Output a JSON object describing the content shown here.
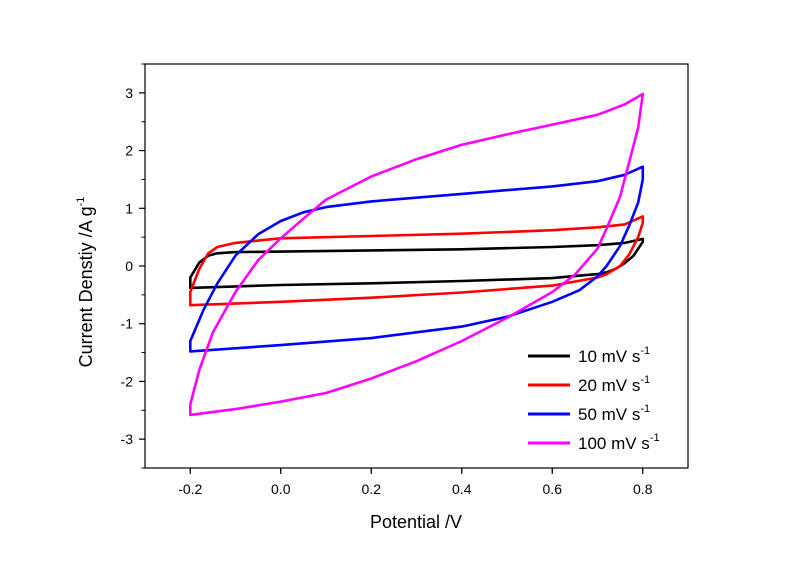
{
  "chart_data": {
    "type": "line",
    "title": "",
    "xlabel": "Potential /V",
    "ylabel": {
      "text": "Current Denstiy /A g",
      "superscript": "-1"
    },
    "xlim": [
      -0.3,
      0.9
    ],
    "ylim": [
      -3.5,
      3.5
    ],
    "xticks": [
      -0.2,
      0.0,
      0.2,
      0.4,
      0.6,
      0.8
    ],
    "xtick_labels": [
      "-0.2",
      "0.0",
      "0.2",
      "0.4",
      "0.6",
      "0.8"
    ],
    "yticks": [
      -3,
      -2,
      -1,
      0,
      1,
      2,
      3
    ],
    "ytick_labels": [
      "-3",
      "-2",
      "-1",
      "0",
      "1",
      "2",
      "3"
    ],
    "grid": false,
    "legend_position": "bottom-right",
    "series": [
      {
        "name": "10  mV s",
        "name_superscript": "-1",
        "color": "#000000",
        "points": [
          [
            -0.2,
            -0.38
          ],
          [
            -0.2,
            -0.2
          ],
          [
            -0.18,
            0.06
          ],
          [
            -0.16,
            0.18
          ],
          [
            -0.14,
            0.22
          ],
          [
            -0.1,
            0.24
          ],
          [
            0.0,
            0.25
          ],
          [
            0.2,
            0.27
          ],
          [
            0.4,
            0.29
          ],
          [
            0.6,
            0.33
          ],
          [
            0.7,
            0.36
          ],
          [
            0.76,
            0.4
          ],
          [
            0.8,
            0.47
          ],
          [
            0.8,
            0.42
          ],
          [
            0.79,
            0.3
          ],
          [
            0.78,
            0.18
          ],
          [
            0.76,
            0.05
          ],
          [
            0.74,
            -0.05
          ],
          [
            0.72,
            -0.11
          ],
          [
            0.7,
            -0.14
          ],
          [
            0.6,
            -0.21
          ],
          [
            0.4,
            -0.26
          ],
          [
            0.2,
            -0.3
          ],
          [
            0.0,
            -0.33
          ],
          [
            -0.2,
            -0.38
          ]
        ]
      },
      {
        "name": "20  mV s",
        "name_superscript": "-1",
        "color": "#ff0000",
        "points": [
          [
            -0.2,
            -0.68
          ],
          [
            -0.2,
            -0.45
          ],
          [
            -0.18,
            -0.05
          ],
          [
            -0.16,
            0.22
          ],
          [
            -0.14,
            0.33
          ],
          [
            -0.1,
            0.4
          ],
          [
            -0.05,
            0.44
          ],
          [
            0.0,
            0.48
          ],
          [
            0.2,
            0.52
          ],
          [
            0.4,
            0.56
          ],
          [
            0.6,
            0.62
          ],
          [
            0.7,
            0.67
          ],
          [
            0.76,
            0.72
          ],
          [
            0.8,
            0.86
          ],
          [
            0.8,
            0.75
          ],
          [
            0.79,
            0.5
          ],
          [
            0.77,
            0.2
          ],
          [
            0.75,
            0.0
          ],
          [
            0.72,
            -0.14
          ],
          [
            0.7,
            -0.2
          ],
          [
            0.6,
            -0.34
          ],
          [
            0.4,
            -0.46
          ],
          [
            0.2,
            -0.55
          ],
          [
            0.0,
            -0.62
          ],
          [
            -0.2,
            -0.68
          ]
        ]
      },
      {
        "name": "50  mV s",
        "name_superscript": "-1",
        "color": "#0000ff",
        "points": [
          [
            -0.2,
            -1.48
          ],
          [
            -0.2,
            -1.3
          ],
          [
            -0.17,
            -0.75
          ],
          [
            -0.14,
            -0.3
          ],
          [
            -0.1,
            0.18
          ],
          [
            -0.05,
            0.55
          ],
          [
            0.0,
            0.78
          ],
          [
            0.05,
            0.93
          ],
          [
            0.1,
            1.02
          ],
          [
            0.2,
            1.12
          ],
          [
            0.4,
            1.25
          ],
          [
            0.6,
            1.38
          ],
          [
            0.7,
            1.47
          ],
          [
            0.76,
            1.58
          ],
          [
            0.8,
            1.72
          ],
          [
            0.8,
            1.5
          ],
          [
            0.79,
            1.1
          ],
          [
            0.77,
            0.7
          ],
          [
            0.75,
            0.35
          ],
          [
            0.72,
            0.0
          ],
          [
            0.7,
            -0.18
          ],
          [
            0.66,
            -0.42
          ],
          [
            0.6,
            -0.62
          ],
          [
            0.5,
            -0.88
          ],
          [
            0.4,
            -1.05
          ],
          [
            0.2,
            -1.25
          ],
          [
            0.0,
            -1.37
          ],
          [
            -0.2,
            -1.48
          ]
        ]
      },
      {
        "name": "100 mV s",
        "name_superscript": "-1",
        "color": "#ff00ff",
        "points": [
          [
            -0.2,
            -2.58
          ],
          [
            -0.2,
            -2.4
          ],
          [
            -0.18,
            -1.8
          ],
          [
            -0.15,
            -1.15
          ],
          [
            -0.1,
            -0.45
          ],
          [
            -0.05,
            0.1
          ],
          [
            0.0,
            0.48
          ],
          [
            0.05,
            0.82
          ],
          [
            0.1,
            1.15
          ],
          [
            0.2,
            1.55
          ],
          [
            0.3,
            1.85
          ],
          [
            0.4,
            2.1
          ],
          [
            0.5,
            2.28
          ],
          [
            0.6,
            2.45
          ],
          [
            0.7,
            2.62
          ],
          [
            0.76,
            2.8
          ],
          [
            0.8,
            2.98
          ],
          [
            0.79,
            2.4
          ],
          [
            0.77,
            1.8
          ],
          [
            0.75,
            1.2
          ],
          [
            0.72,
            0.65
          ],
          [
            0.7,
            0.3
          ],
          [
            0.65,
            -0.15
          ],
          [
            0.6,
            -0.45
          ],
          [
            0.5,
            -0.9
          ],
          [
            0.4,
            -1.3
          ],
          [
            0.3,
            -1.65
          ],
          [
            0.2,
            -1.95
          ],
          [
            0.1,
            -2.2
          ],
          [
            0.0,
            -2.35
          ],
          [
            -0.1,
            -2.48
          ],
          [
            -0.2,
            -2.58
          ]
        ]
      }
    ]
  }
}
